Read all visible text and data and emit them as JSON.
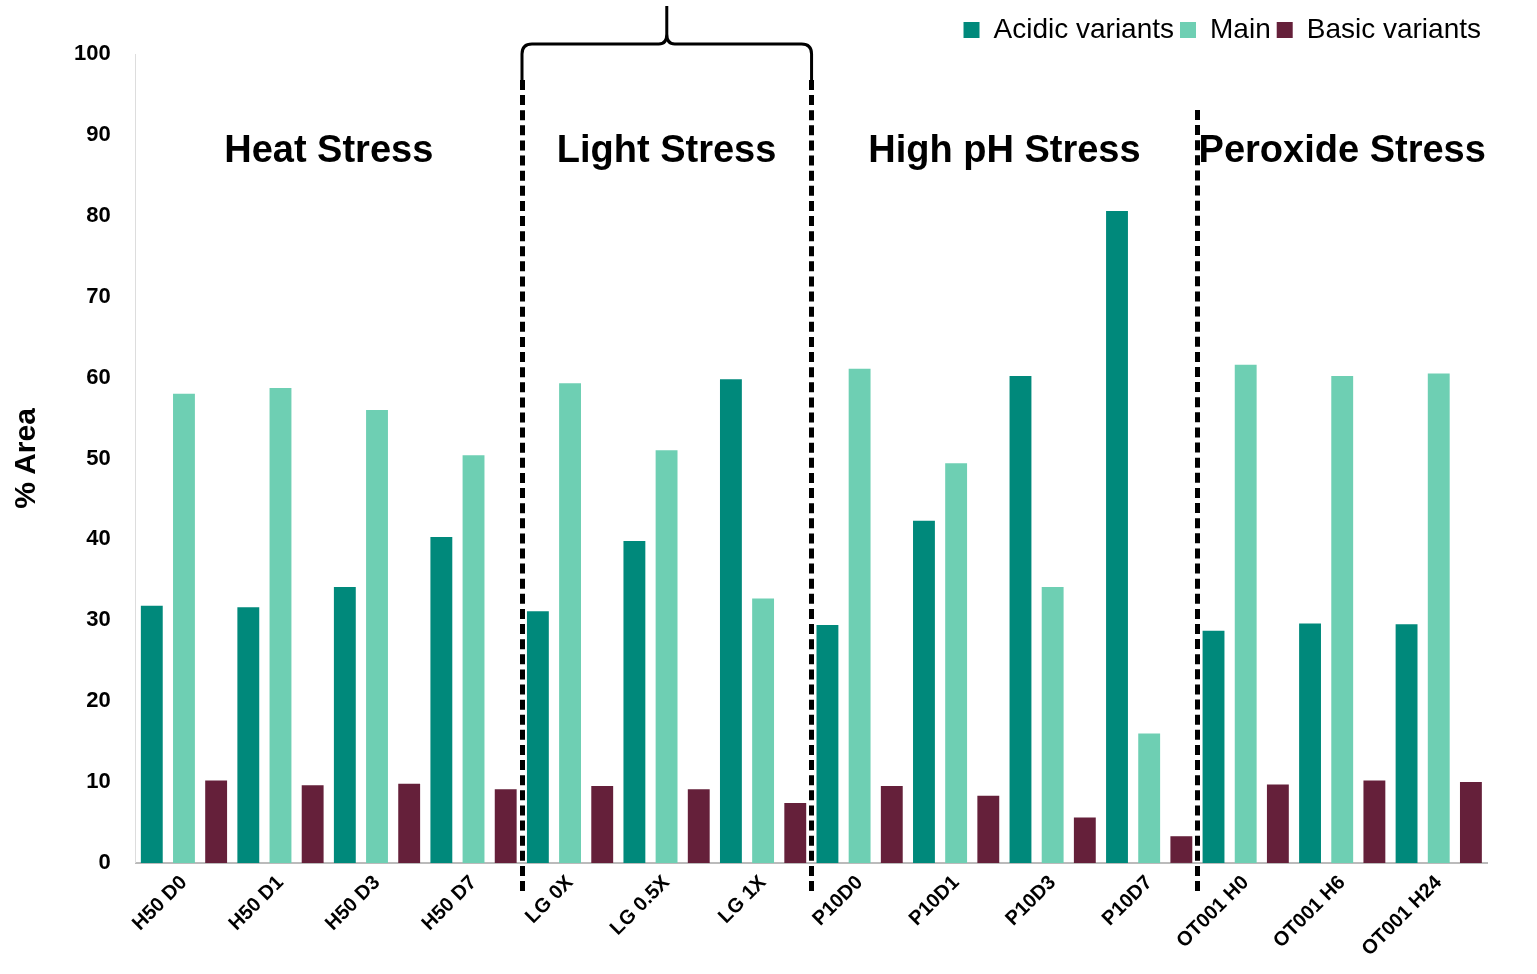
{
  "chart_data": {
    "type": "bar",
    "ylabel": "% Area",
    "categories": [
      "H50 D0",
      "H50 D1",
      "H50 D3",
      "H50 D7",
      "LG 0X",
      "LG 0.5X",
      "LG 1X",
      "P10D0",
      "P10D1",
      "P10D3",
      "P10D7",
      "OT001 H0",
      "OT001 H6",
      "OT001 H24"
    ],
    "series": [
      {
        "name": "Acidic variants",
        "color": "#00897b",
        "values": [
          31.8,
          31.6,
          34.1,
          40.3,
          31.1,
          39.8,
          59.8,
          29.4,
          42.3,
          60.2,
          80.6,
          28.7,
          29.6,
          29.5
        ]
      },
      {
        "name": "Main",
        "color": "#6ecfb3",
        "values": [
          58.0,
          58.7,
          56.0,
          50.4,
          59.3,
          51.0,
          32.7,
          61.1,
          49.4,
          34.1,
          16.0,
          61.6,
          60.2,
          60.5
        ]
      },
      {
        "name": "Basic variants",
        "color": "#65203a",
        "values": [
          10.2,
          9.6,
          9.8,
          9.1,
          9.5,
          9.1,
          7.4,
          9.5,
          8.3,
          5.6,
          3.3,
          9.7,
          10.2,
          10.0
        ]
      }
    ],
    "ylim": [
      0,
      100
    ],
    "yticks": [
      0,
      10,
      20,
      30,
      40,
      50,
      60,
      70,
      80,
      90,
      100
    ],
    "grid": false,
    "legend": "top right",
    "annotations": [
      "Heat Stress",
      "Light Stress",
      "High pH Stress",
      "Peroxide Stress"
    ]
  }
}
